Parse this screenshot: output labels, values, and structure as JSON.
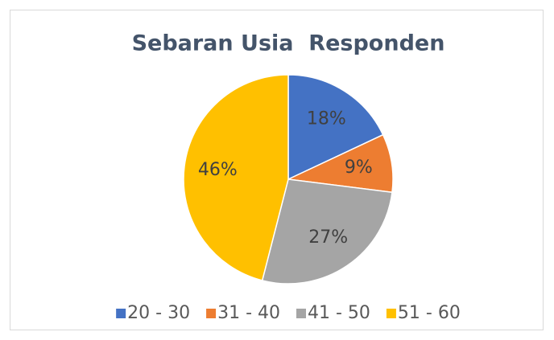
{
  "chart_data": {
    "type": "pie",
    "title": "Sebaran Usia  Responden",
    "categories": [
      "20 - 30",
      "31 - 40",
      "41 - 50",
      "51 - 60"
    ],
    "values": [
      18,
      9,
      27,
      46
    ],
    "value_labels": [
      "18%",
      "9%",
      "27%",
      "46%"
    ],
    "colors": [
      "#4472c4",
      "#ed7d31",
      "#a5a5a5",
      "#ffc000"
    ],
    "legend": "bottom"
  }
}
